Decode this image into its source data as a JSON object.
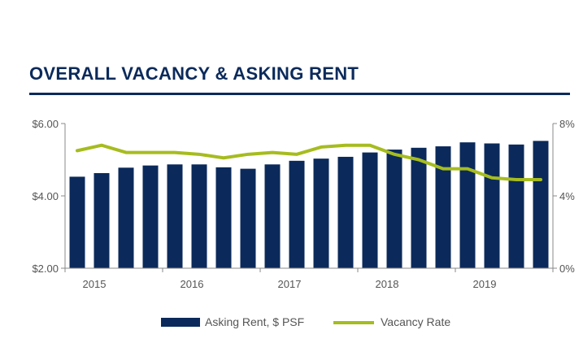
{
  "title": "OVERALL VACANCY & ASKING RENT",
  "colors": {
    "bar": "#0b2a5b",
    "line": "#a6bc1f",
    "title": "#0b2a5b"
  },
  "chart_data": {
    "type": "bar",
    "title": "OVERALL VACANCY & ASKING RENT",
    "categories": [
      "2015 Q1",
      "2015 Q2",
      "2015 Q3",
      "2015 Q4",
      "2016 Q1",
      "2016 Q2",
      "2016 Q3",
      "2016 Q4",
      "2017 Q1",
      "2017 Q2",
      "2017 Q3",
      "2017 Q4",
      "2018 Q1",
      "2018 Q2",
      "2018 Q3",
      "2018 Q4",
      "2019 Q1",
      "2019 Q2",
      "2019 Q3",
      "2019 Q4"
    ],
    "x_tick_labels": [
      "2015",
      "2016",
      "2017",
      "2018",
      "2019"
    ],
    "y_left": {
      "ylim": [
        2.0,
        6.0
      ],
      "ticks": [
        "$2.00",
        "$4.00",
        "$6.00"
      ],
      "tick_values": [
        2.0,
        4.0,
        6.0
      ]
    },
    "y_right": {
      "ylim": [
        0,
        8
      ],
      "ticks": [
        "0%",
        "4%",
        "8%"
      ],
      "tick_values": [
        0,
        4,
        8
      ]
    },
    "series": [
      {
        "name": "Asking Rent, $ PSF",
        "type": "bar",
        "axis": "left",
        "values": [
          4.53,
          4.63,
          4.78,
          4.84,
          4.87,
          4.87,
          4.79,
          4.75,
          4.87,
          4.97,
          5.03,
          5.08,
          5.2,
          5.28,
          5.33,
          5.37,
          5.48,
          5.45,
          5.42,
          5.52
        ]
      },
      {
        "name": "Vacancy Rate",
        "type": "line",
        "axis": "right",
        "values": [
          6.5,
          6.8,
          6.4,
          6.4,
          6.4,
          6.3,
          6.1,
          6.3,
          6.4,
          6.3,
          6.7,
          6.8,
          6.8,
          6.3,
          6.0,
          5.5,
          5.5,
          5.0,
          4.9,
          4.9
        ]
      }
    ],
    "legend": {
      "position": "bottom",
      "labels": [
        "Asking Rent, $ PSF",
        "Vacancy Rate"
      ]
    },
    "grid": false
  }
}
